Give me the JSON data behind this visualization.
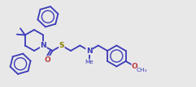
{
  "bg_color": "#e8e8e8",
  "lc": "#3a3ab8",
  "cn": "#3a3ab8",
  "cs": "#8a7a00",
  "co": "#b83a3a",
  "lw": 1.3,
  "fs": 6.5,
  "fs_s": 5.2,
  "figsize": [
    2.41,
    1.08
  ],
  "dpi": 100,
  "notes": "All coords in matplotlib space (y-up), image 241x108. Acridine: N at bottom, two benzo rings left and right fused via central ring at C9(gem-Me2). Side chain: N-C(=O)-S-CH2CH2-N(Me)-CH2-Ph(4-OMe)"
}
